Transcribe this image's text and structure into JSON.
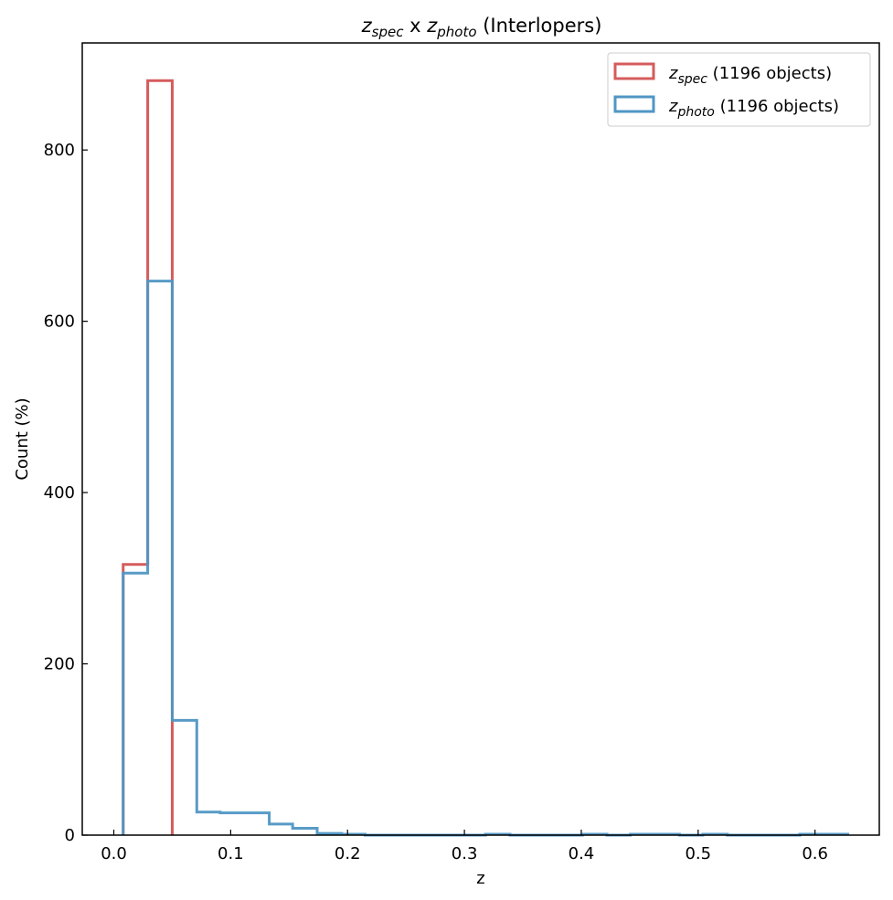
{
  "chart_data": {
    "type": "histogram",
    "title": {
      "var1": "z",
      "sub1": "spec",
      "sep": " x ",
      "var2": "z",
      "sub2": "photo",
      "suffix": " (Interlopers)"
    },
    "xlabel": "z",
    "ylabel": "Count (%)",
    "xlim": [
      -0.027,
      0.655
    ],
    "ylim": [
      0,
      925
    ],
    "xticks": [
      0.0,
      0.1,
      0.2,
      0.3,
      0.4,
      0.5,
      0.6
    ],
    "xtick_labels": [
      "0.0",
      "0.1",
      "0.2",
      "0.3",
      "0.4",
      "0.5",
      "0.6"
    ],
    "yticks": [
      0,
      200,
      400,
      600,
      800
    ],
    "ytick_labels": [
      "0",
      "200",
      "400",
      "600",
      "800"
    ],
    "grid": false,
    "legend_position": "top-right",
    "series": [
      {
        "var": "z",
        "sub": "spec",
        "suffix": " (1196 objects)",
        "color": "#d55c5c",
        "bin_edges": [
          0.008,
          0.029,
          0.05
        ],
        "counts": [
          316,
          881
        ]
      },
      {
        "var": "z",
        "sub": "photo",
        "suffix": " (1196 objects)",
        "color": "#4f96c4",
        "bin_edges": [
          0.008,
          0.029,
          0.05,
          0.071,
          0.091,
          0.112,
          0.133,
          0.153,
          0.174,
          0.195,
          0.215,
          0.236,
          0.257,
          0.277,
          0.298,
          0.318,
          0.339,
          0.36,
          0.38,
          0.401,
          0.422,
          0.442,
          0.463,
          0.484,
          0.504,
          0.525,
          0.546,
          0.566,
          0.587,
          0.608,
          0.628
        ],
        "counts": [
          306,
          647,
          134,
          27,
          26,
          26,
          13,
          8,
          2,
          1,
          0,
          0,
          0,
          0,
          0,
          1,
          0,
          0,
          0,
          1,
          0,
          1,
          1,
          0,
          1,
          0,
          0,
          0,
          1,
          1
        ]
      }
    ]
  }
}
